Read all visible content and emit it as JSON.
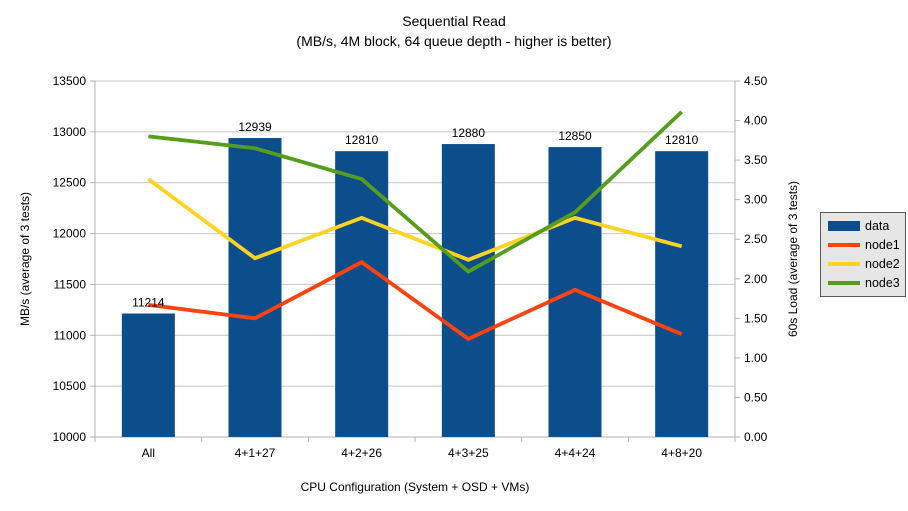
{
  "chart_data": {
    "type": "bar+line combo",
    "title": "Sequential Read",
    "subtitle": "(MB/s, 4M block, 64 queue depth - higher is better)",
    "categories": [
      "All",
      "4+1+27",
      "4+2+26",
      "4+3+25",
      "4+4+24",
      "4+8+20"
    ],
    "bar_series": {
      "name": "data",
      "axis": "left",
      "color": "#0c4d8c",
      "values": [
        11214,
        12939,
        12810,
        12880,
        12850,
        12810
      ],
      "data_labels": [
        "11214",
        "12939",
        "12810",
        "12880",
        "12850",
        "12810"
      ]
    },
    "line_series": [
      {
        "name": "node1",
        "axis": "right",
        "color": "#ff420e",
        "values": [
          1.67,
          1.5,
          2.21,
          1.24,
          1.86,
          1.3
        ]
      },
      {
        "name": "node2",
        "axis": "right",
        "color": "#ffd320",
        "values": [
          3.26,
          2.26,
          2.77,
          2.24,
          2.77,
          2.41
        ]
      },
      {
        "name": "node3",
        "axis": "right",
        "color": "#579d1c",
        "values": [
          3.8,
          3.65,
          3.26,
          2.09,
          2.84,
          4.11
        ]
      }
    ],
    "left_axis": {
      "label": "MB/s (average of 3 tests)",
      "min": 10000,
      "max": 13500,
      "ticks": [
        "10000",
        "10500",
        "11000",
        "11500",
        "12000",
        "12500",
        "13000",
        "13500"
      ]
    },
    "right_axis": {
      "label": "60s Load (average of 3 tests)",
      "min": 0,
      "max": 4.5,
      "ticks": [
        "0.00",
        "0.50",
        "1.00",
        "1.50",
        "2.00",
        "2.50",
        "3.00",
        "3.50",
        "4.00",
        "4.50"
      ]
    },
    "x_axis": {
      "label": "CPU Configuration (System + OSD + VMs)"
    },
    "legend": {
      "position": "right"
    },
    "grid": "horizontal",
    "colors": {
      "grid": "#c6c6c6",
      "axis": "#b3b3b3",
      "text": "#000000",
      "legend_bg": "#e6e6e6",
      "legend_border": "#595959"
    }
  }
}
